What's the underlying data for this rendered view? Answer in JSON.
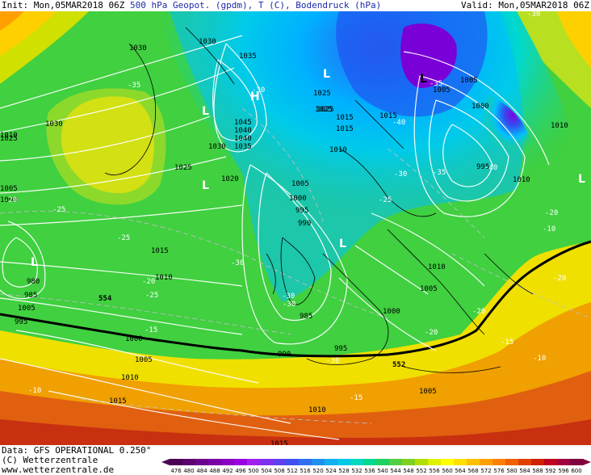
{
  "header": {
    "init_label": "Init:",
    "init_value": "Mon,05MAR2018 06Z",
    "product": "500 hPa Geopot. (gpdm), T (C), Bodendruck (hPa)",
    "valid_label": "Valid:",
    "valid_value": "Mon,05MAR2018 06Z"
  },
  "footer": {
    "data_line": "Data: GFS OPERATIONAL 0.250°",
    "copyright": "(C) Wetterzentrale",
    "website": "www.wetterzentrale.de"
  },
  "scale": {
    "values": [
      "476",
      "480",
      "484",
      "488",
      "492",
      "496",
      "500",
      "504",
      "508",
      "512",
      "516",
      "520",
      "524",
      "528",
      "532",
      "536",
      "540",
      "544",
      "548",
      "552",
      "556",
      "560",
      "564",
      "568",
      "572",
      "576",
      "580",
      "584",
      "588",
      "592",
      "596",
      "600"
    ],
    "colors": [
      "#4b0055",
      "#5a0070",
      "#6a008c",
      "#7a00a8",
      "#8a00c4",
      "#9a00e0",
      "#a020f0",
      "#8030f0",
      "#6040f0",
      "#4050f0",
      "#3070f0",
      "#2090f0",
      "#10b0f0",
      "#00c8e8",
      "#00d8c0",
      "#00d890",
      "#20d060",
      "#50d040",
      "#80d020",
      "#b0e000",
      "#e0f000",
      "#ffff00",
      "#ffe000",
      "#ffc000",
      "#ffa000",
      "#ff8000",
      "#f06000",
      "#e04000",
      "#d02000",
      "#c00020",
      "#a00040",
      "#800040"
    ]
  },
  "map": {
    "legend_colors": {
      "deep_cold": "#8a2be2",
      "cold_blue": "#1e90ff",
      "cyan": "#00c8ff",
      "green": "#3cd23c",
      "yellow": "#f0e000",
      "orange": "#f08000",
      "red": "#d03010"
    },
    "pressure_labels": [
      "1030",
      "1035",
      "1040",
      "1045",
      "1040",
      "1035",
      "1030",
      "1025",
      "1020",
      "1015",
      "1010",
      "1005",
      "1000",
      "995",
      "990",
      "985",
      "980",
      "1030",
      "1025",
      "1015",
      "1010",
      "1005",
      "1000",
      "995",
      "990",
      "985",
      "1010",
      "1015",
      "1010",
      "1005",
      "1000",
      "995",
      "1005",
      "1010",
      "1015",
      "1005",
      "1000",
      "1005",
      "1010",
      "1015",
      "1010",
      "1005",
      "1000",
      "995",
      "1005",
      "1010",
      "1025",
      "1030",
      "1025",
      "1025",
      "1015"
    ],
    "temp_labels": [
      "-30",
      "-40",
      "-40",
      "-30",
      "-35",
      "-30",
      "-25",
      "-20",
      "-25",
      "-30",
      "-35",
      "-30",
      "-20",
      "-15",
      "-10",
      "-10",
      "-20",
      "-25",
      "-20",
      "-15",
      "-20",
      "-15",
      "-10",
      "-30",
      "-35",
      "-20",
      "-25",
      "-30"
    ],
    "pressure_centers": [
      "H",
      "L",
      "L",
      "L",
      "L",
      "L",
      "L",
      "L"
    ],
    "contour_552": "552",
    "contour_554": "554"
  }
}
